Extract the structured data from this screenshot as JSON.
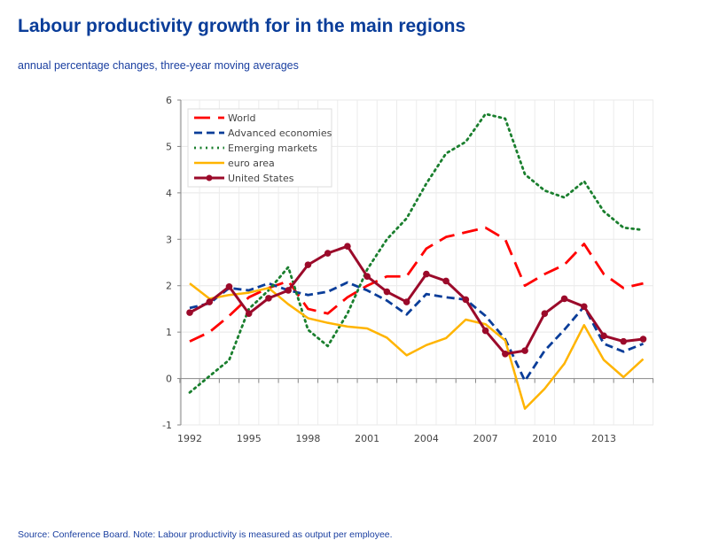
{
  "title": "Labour productivity growth for in the main regions",
  "subtitle": "annual percentage changes, three-year moving averages",
  "source": "Source: Conference Board. Note: Labour productivity is measured as output per employee.",
  "chart_data": {
    "type": "line",
    "title": "Labour productivity growth for in the main regions",
    "subtitle": "annual percentage changes, three-year moving averages",
    "xlabel": "",
    "ylabel": "",
    "x": [
      1992,
      1993,
      1994,
      1995,
      1996,
      1997,
      1998,
      1999,
      2000,
      2001,
      2002,
      2003,
      2004,
      2005,
      2006,
      2007,
      2008,
      2009,
      2010,
      2011,
      2012,
      2013,
      2014,
      2015
    ],
    "xticks": [
      "1992",
      "1995",
      "1998",
      "2001",
      "2004",
      "2007",
      "2010",
      "2013"
    ],
    "yticks": [
      "6",
      "5",
      "4",
      "3",
      "2",
      "1",
      "0",
      "-1"
    ],
    "ylim": [
      -1,
      6
    ],
    "grid": true,
    "legend": "top-left",
    "series": [
      {
        "name": "World",
        "color": "#ff0000",
        "style": "dash",
        "values": [
          0.8,
          1.0,
          1.35,
          1.75,
          1.95,
          2.1,
          1.5,
          1.4,
          1.75,
          2.0,
          2.2,
          2.2,
          2.8,
          3.05,
          3.15,
          3.25,
          3.0,
          2.0,
          2.25,
          2.45,
          2.9,
          2.25,
          1.95,
          2.05
        ]
      },
      {
        "name": "Advanced economies",
        "color": "#0a3d99",
        "style": "shortdash",
        "values": [
          1.52,
          1.62,
          1.95,
          1.9,
          2.05,
          1.9,
          1.8,
          1.87,
          2.07,
          1.9,
          1.68,
          1.38,
          1.82,
          1.75,
          1.7,
          1.35,
          0.85,
          -0.05,
          0.6,
          1.05,
          1.55,
          0.75,
          0.58,
          0.75
        ]
      },
      {
        "name": "Emerging markets",
        "color": "#1a7f2e",
        "style": "dot",
        "values": [
          -0.3,
          0.05,
          0.4,
          1.5,
          1.9,
          2.4,
          1.05,
          0.7,
          1.4,
          2.35,
          3.0,
          3.45,
          4.2,
          4.85,
          5.1,
          5.7,
          5.6,
          4.4,
          4.05,
          3.9,
          4.25,
          3.6,
          3.25,
          3.2
        ]
      },
      {
        "name": "euro area",
        "color": "#ffb400",
        "style": "solid",
        "values": [
          2.05,
          1.72,
          1.8,
          1.85,
          1.95,
          1.6,
          1.3,
          1.2,
          1.12,
          1.08,
          0.88,
          0.5,
          0.72,
          0.87,
          1.27,
          1.17,
          0.82,
          -0.65,
          -0.22,
          0.32,
          1.15,
          0.4,
          0.03,
          0.42
        ]
      },
      {
        "name": "United States",
        "color": "#9b0a2a",
        "style": "solid-marker",
        "values": [
          1.42,
          1.65,
          1.98,
          1.4,
          1.73,
          1.9,
          2.45,
          2.7,
          2.85,
          2.2,
          1.87,
          1.65,
          2.25,
          2.1,
          1.7,
          1.03,
          0.53,
          0.6,
          1.4,
          1.72,
          1.55,
          0.92,
          0.8,
          0.85
        ]
      }
    ]
  }
}
